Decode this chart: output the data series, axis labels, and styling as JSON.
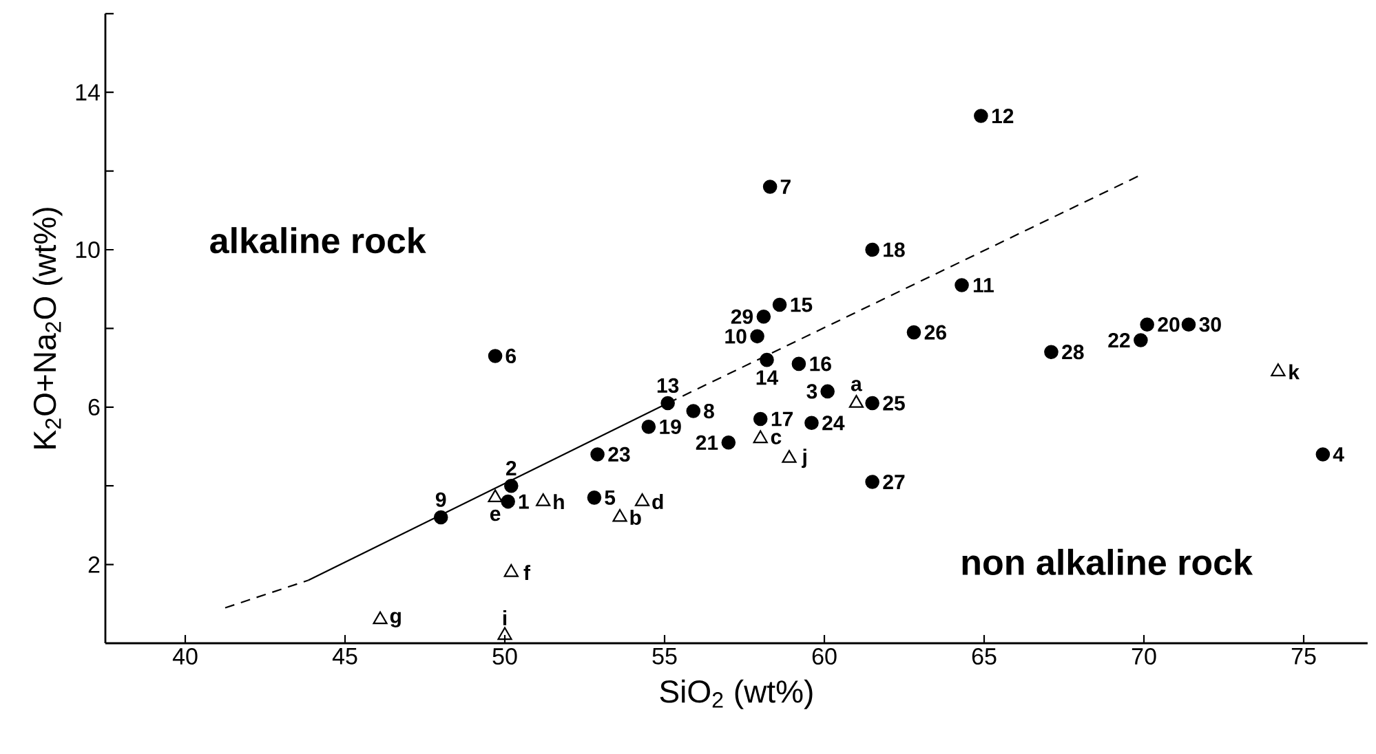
{
  "chart_data": {
    "type": "scatter",
    "xlabel": "SiO$_{2}$ (wt%)",
    "ylabel": "K$_{2}$O+Na$_{2}$O (wt%)",
    "xlim": [
      37.5,
      77
    ],
    "ylim": [
      0,
      16
    ],
    "xticks": [
      40,
      45,
      50,
      55,
      60,
      65,
      70,
      75
    ],
    "yticks": [
      2,
      {
        "value": 4,
        "label": null
      },
      6,
      {
        "value": 8,
        "label": null
      },
      10,
      {
        "value": 12,
        "label": null
      },
      14,
      {
        "value": 16,
        "label": null
      }
    ],
    "annotations": [
      "alkaline rock",
      "non alkaline rock",
      {
        "text": "1",
        "x": 50.1,
        "y": 3.6
      },
      {
        "text": "2",
        "x": 50.2,
        "y": 4.0
      },
      {
        "text": "3",
        "x": 60.1,
        "y": 6.4
      },
      {
        "text": "4",
        "x": 75.6,
        "y": 4.8
      },
      {
        "text": "5",
        "x": 52.8,
        "y": 3.7
      },
      {
        "text": "6",
        "x": 49.7,
        "y": 7.3
      },
      {
        "text": "7",
        "x": 58.3,
        "y": 11.6
      },
      {
        "text": "8",
        "x": 55.9,
        "y": 5.9
      },
      {
        "text": "9",
        "x": 48.0,
        "y": 3.2
      },
      {
        "text": "10",
        "x": 57.9,
        "y": 7.8
      },
      {
        "text": "11",
        "x": 64.3,
        "y": 9.1
      },
      {
        "text": "12",
        "x": 64.9,
        "y": 13.4
      },
      {
        "text": "13",
        "x": 55.1,
        "y": 6.1
      },
      {
        "text": "14",
        "x": 58.2,
        "y": 7.2
      },
      {
        "text": "15",
        "x": 58.6,
        "y": 8.6
      },
      {
        "text": "16",
        "x": 59.2,
        "y": 7.1
      },
      {
        "text": "17",
        "x": 58.0,
        "y": 5.7
      },
      {
        "text": "18",
        "x": 61.5,
        "y": 10.0
      },
      {
        "text": "19",
        "x": 54.5,
        "y": 5.5
      },
      {
        "text": "20",
        "x": 70.1,
        "y": 8.1
      },
      {
        "text": "21",
        "x": 57.0,
        "y": 5.1
      },
      {
        "text": "22",
        "x": 69.9,
        "y": 7.7
      },
      {
        "text": "23",
        "x": 52.9,
        "y": 4.8
      },
      {
        "text": "24",
        "x": 59.6,
        "y": 5.6
      },
      {
        "text": "25",
        "x": 61.5,
        "y": 6.1
      },
      {
        "text": "26",
        "x": 62.8,
        "y": 7.9
      },
      {
        "text": "27",
        "x": 61.5,
        "y": 4.1
      },
      {
        "text": "28",
        "x": 67.1,
        "y": 7.4
      },
      {
        "text": "29",
        "x": 58.1,
        "y": 8.3
      },
      {
        "text": "30",
        "x": 71.4,
        "y": 8.1
      },
      {
        "text": "a",
        "x": 61.0,
        "y": 6.1
      },
      {
        "text": "b",
        "x": 53.6,
        "y": 3.2
      },
      {
        "text": "c",
        "x": 58.0,
        "y": 5.2
      },
      {
        "text": "d",
        "x": 54.3,
        "y": 3.6
      },
      {
        "text": "e",
        "x": 49.7,
        "y": 3.7
      },
      {
        "text": "f",
        "x": 50.2,
        "y": 1.8
      },
      {
        "text": "g",
        "x": 46.1,
        "y": 0.6
      },
      {
        "text": "h",
        "x": 51.2,
        "y": 3.6
      },
      {
        "text": "i",
        "x": 50.0,
        "y": 0.2
      },
      {
        "text": "j",
        "x": 58.9,
        "y": 4.7
      },
      {
        "text": "k",
        "x": 74.2,
        "y": 6.9
      }
    ],
    "series": [
      {
        "type": "line",
        "line_style": "dashed",
        "color": "#000000",
        "x": [
          41.25,
          43.85
        ],
        "values": [
          0.9,
          1.6
        ]
      },
      {
        "type": "line",
        "line_style": "solid",
        "color": "#000000",
        "x": [
          43.85,
          55.1
        ],
        "values": [
          1.6,
          6.1
        ]
      },
      {
        "type": "line",
        "line_style": "dashed",
        "color": "#000000",
        "x": [
          55.1,
          69.9
        ],
        "values": [
          6.1,
          11.9
        ]
      },
      {
        "marker": "circle",
        "color": "#000000",
        "x": [
          50.1,
          50.2,
          60.1,
          75.6,
          52.8,
          49.7,
          58.3,
          55.9,
          48.0,
          57.9,
          64.3,
          64.9,
          55.1,
          58.2,
          58.6,
          59.2,
          58.0,
          61.5,
          54.5,
          70.1,
          57.0,
          69.9,
          52.9,
          59.6,
          61.5,
          62.8,
          61.5,
          67.1,
          58.1,
          71.4
        ],
        "values": [
          3.6,
          4.0,
          6.4,
          4.8,
          3.7,
          7.3,
          11.6,
          5.9,
          3.2,
          7.8,
          9.1,
          13.4,
          6.1,
          7.2,
          8.6,
          7.1,
          5.7,
          10.0,
          5.5,
          8.1,
          5.1,
          7.7,
          4.8,
          5.6,
          6.1,
          7.9,
          4.1,
          7.4,
          8.3,
          8.1
        ]
      },
      {
        "marker": "triangle",
        "color": "#000000",
        "x": [
          61.0,
          53.6,
          58.0,
          54.3,
          49.7,
          50.2,
          46.1,
          51.2,
          50.0,
          58.9,
          74.2
        ],
        "values": [
          6.1,
          3.2,
          5.2,
          3.6,
          3.7,
          1.8,
          0.6,
          3.6,
          0.2,
          4.7,
          6.9
        ]
      }
    ]
  }
}
